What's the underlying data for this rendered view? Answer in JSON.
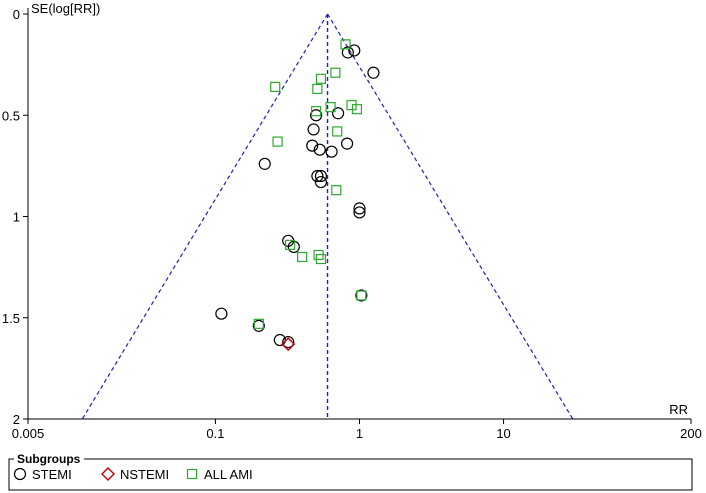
{
  "chart_data": {
    "type": "scatter",
    "title": "",
    "xlabel": "RR",
    "ylabel": "SE(log[RR])",
    "x_scale": "log",
    "xlim": [
      0.005,
      200
    ],
    "ylim": [
      0,
      2
    ],
    "y_reversed": true,
    "x_ticks": [
      0.005,
      0.1,
      1,
      10,
      200
    ],
    "x_tick_labels": [
      "0.005",
      "0.1",
      "1",
      "10",
      "200"
    ],
    "y_ticks": [
      0,
      0.5,
      1,
      1.5,
      2
    ],
    "y_tick_labels": [
      "0",
      "0.5",
      "1",
      "1.5",
      "2"
    ],
    "pooled_rr": 0.6,
    "funnel_ci": 0.95,
    "grid": false,
    "legend": {
      "title": "Subgroups",
      "placement": "bottom"
    },
    "colors": {
      "axis": "#000000",
      "funnel": "#1f1fbf",
      "stemi": "#000000",
      "nstemi": "#c00000",
      "all_ami": "#2ca82c"
    },
    "series": [
      {
        "name": "STEMI",
        "marker": "circle",
        "points": [
          {
            "x": 0.83,
            "y": 0.19
          },
          {
            "x": 0.92,
            "y": 0.18
          },
          {
            "x": 1.25,
            "y": 0.29
          },
          {
            "x": 0.5,
            "y": 0.5
          },
          {
            "x": 0.71,
            "y": 0.49
          },
          {
            "x": 0.48,
            "y": 0.57
          },
          {
            "x": 0.47,
            "y": 0.65
          },
          {
            "x": 0.53,
            "y": 0.67
          },
          {
            "x": 0.64,
            "y": 0.68
          },
          {
            "x": 0.82,
            "y": 0.64
          },
          {
            "x": 0.22,
            "y": 0.74
          },
          {
            "x": 0.51,
            "y": 0.8
          },
          {
            "x": 0.54,
            "y": 0.8
          },
          {
            "x": 0.54,
            "y": 0.83
          },
          {
            "x": 1.0,
            "y": 0.96
          },
          {
            "x": 1.0,
            "y": 0.98
          },
          {
            "x": 0.32,
            "y": 1.12
          },
          {
            "x": 0.35,
            "y": 1.15
          },
          {
            "x": 1.03,
            "y": 1.39
          },
          {
            "x": 0.11,
            "y": 1.48
          },
          {
            "x": 0.2,
            "y": 1.54
          },
          {
            "x": 0.28,
            "y": 1.61
          },
          {
            "x": 0.32,
            "y": 1.62
          }
        ]
      },
      {
        "name": "NSTEMI",
        "marker": "diamond",
        "points": [
          {
            "x": 0.32,
            "y": 1.63
          }
        ]
      },
      {
        "name": "ALL AMI",
        "marker": "square",
        "points": [
          {
            "x": 0.8,
            "y": 0.15
          },
          {
            "x": 0.54,
            "y": 0.32
          },
          {
            "x": 0.68,
            "y": 0.29
          },
          {
            "x": 0.26,
            "y": 0.36
          },
          {
            "x": 0.51,
            "y": 0.37
          },
          {
            "x": 0.88,
            "y": 0.45
          },
          {
            "x": 0.96,
            "y": 0.47
          },
          {
            "x": 0.63,
            "y": 0.46
          },
          {
            "x": 0.5,
            "y": 0.48
          },
          {
            "x": 0.7,
            "y": 0.58
          },
          {
            "x": 0.27,
            "y": 0.63
          },
          {
            "x": 0.69,
            "y": 0.87
          },
          {
            "x": 0.33,
            "y": 1.14
          },
          {
            "x": 0.4,
            "y": 1.2
          },
          {
            "x": 0.52,
            "y": 1.19
          },
          {
            "x": 0.54,
            "y": 1.21
          },
          {
            "x": 1.03,
            "y": 1.39
          },
          {
            "x": 0.2,
            "y": 1.53
          }
        ]
      }
    ]
  }
}
